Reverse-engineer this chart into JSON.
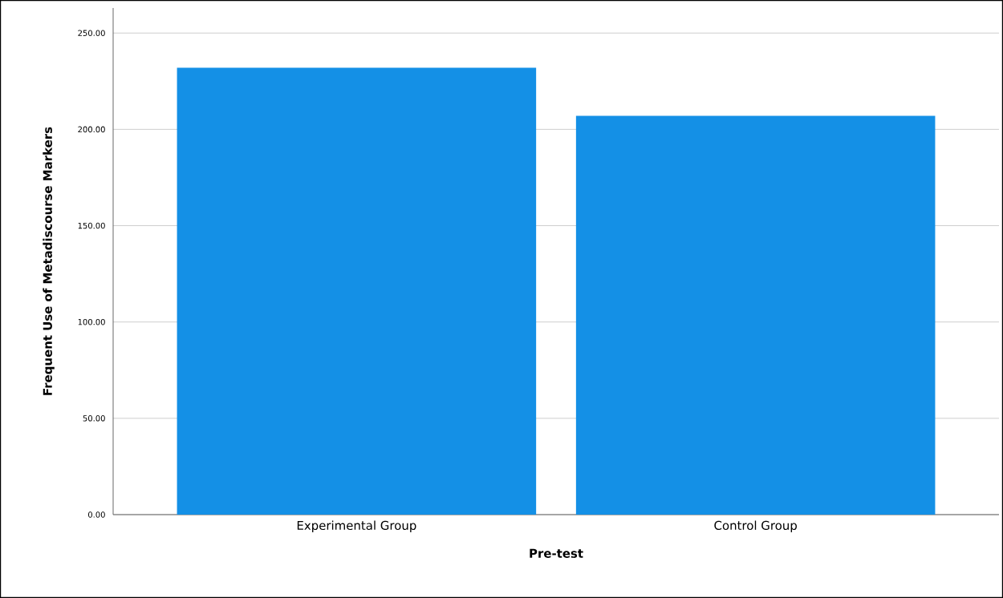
{
  "chart_data": {
    "type": "bar",
    "xlabel": "Pre-test",
    "ylabel": "Frequent Use of Metadiscourse Markers",
    "categories": [
      "Experimental Group",
      "Control Group"
    ],
    "values": [
      232,
      207
    ],
    "color": "#1490e6",
    "ylim": [
      0,
      263
    ],
    "yticks": [
      {
        "value": 0,
        "label": "0.00"
      },
      {
        "value": 50,
        "label": "50.00"
      },
      {
        "value": 100,
        "label": "100.00"
      },
      {
        "value": 150,
        "label": "150.00"
      },
      {
        "value": 200,
        "label": "200.00"
      },
      {
        "value": 250,
        "label": "250.00"
      }
    ],
    "grid": "y"
  }
}
